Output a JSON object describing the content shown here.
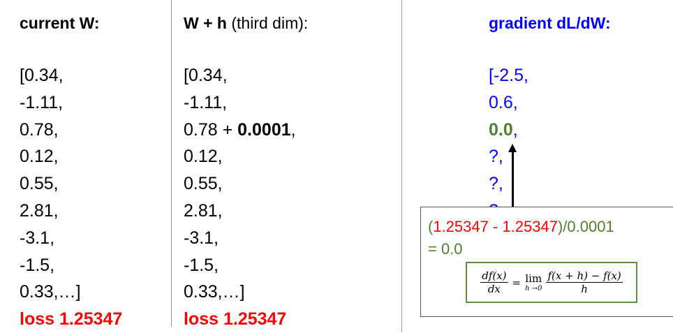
{
  "columns": [
    {
      "header_bold": "current W:",
      "header_rest": "",
      "values": [
        "[0.34,",
        "-1.11,",
        "0.78,",
        "0.12,",
        "0.55,",
        "2.81,",
        "-3.1,",
        "-1.5,",
        "0.33,…]"
      ],
      "loss": "loss 1.25347"
    },
    {
      "header_bold": "W + h",
      "header_rest": " (third dim):",
      "values": [
        "[0.34,",
        "-1.11,",
        "0.78 + ",
        "0.12,",
        "0.55,",
        "2.81,",
        "-3.1,",
        "-1.5,",
        "0.33,…]"
      ],
      "perturb_bold": "0.0001",
      "perturb_suffix": ",",
      "loss": "loss 1.25347"
    }
  ],
  "gradient": {
    "header": "gradient dL/dW:",
    "values": [
      "[-2.5,",
      "0.6,"
    ],
    "highlight_value": "0.0",
    "highlight_suffix": ",",
    "unknown": [
      "?,",
      "?,",
      "?,"
    ]
  },
  "calculation": {
    "open": "(",
    "loss_new": "1.25347",
    "minus": " - ",
    "loss_old": "1.25347",
    "close": ")/0.0001",
    "result": "= 0.0"
  },
  "formula": {
    "lhs_num": "df(x)",
    "lhs_den": "dx",
    "equals": "=",
    "lim": "lim",
    "lim_sub": "h →0",
    "rhs_num": "f(x + h) − f(x)",
    "rhs_den": "h"
  },
  "colors": {
    "loss": "#ff0000",
    "gradient": "#0000ff",
    "highlight": "#4f7f2f"
  }
}
